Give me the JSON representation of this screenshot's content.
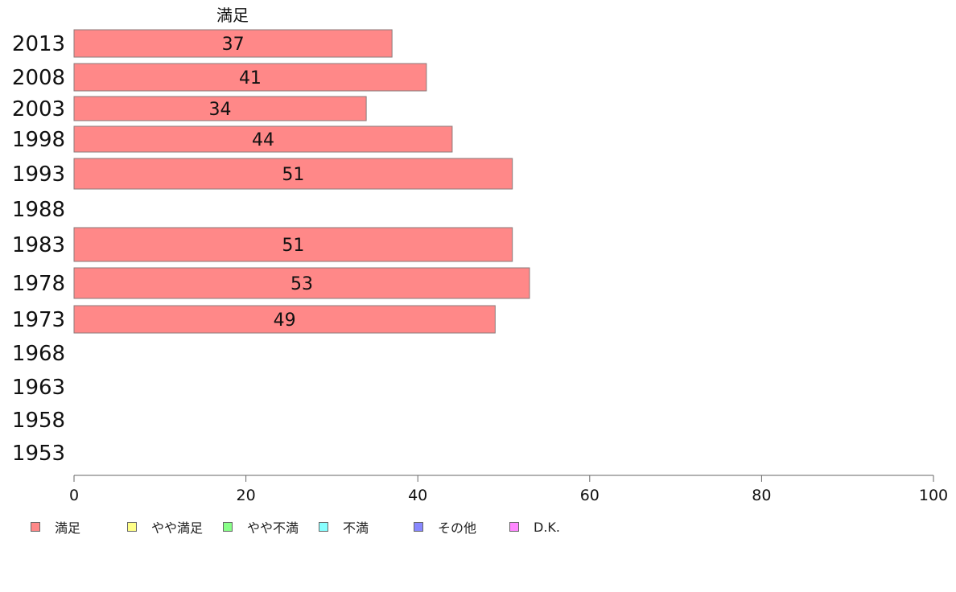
{
  "chart_data": {
    "type": "bar",
    "orientation": "horizontal",
    "title": "満足",
    "categories": [
      "2013",
      "2008",
      "2003",
      "1998",
      "1993",
      "1988",
      "1983",
      "1978",
      "1973",
      "1968",
      "1963",
      "1958",
      "1953"
    ],
    "series": [
      {
        "name": "満足",
        "color": "#ff8888",
        "values": [
          37,
          41,
          34,
          44,
          51,
          null,
          51,
          53,
          49,
          null,
          null,
          null,
          null
        ]
      }
    ],
    "data_labels": [
      "37",
      "41",
      "34",
      "44",
      "51",
      "",
      "51",
      "53",
      "49",
      "",
      "",
      "",
      ""
    ],
    "xlim": [
      0,
      100
    ],
    "x_ticks": [
      "0",
      "20",
      "40",
      "60",
      "80",
      "100"
    ],
    "grid": false,
    "legend": {
      "placement": "bottom",
      "items": [
        {
          "label": "満足",
          "color": "#ff8888"
        },
        {
          "label": "やや満足",
          "color": "#ffff88"
        },
        {
          "label": "やや不満",
          "color": "#88ff88"
        },
        {
          "label": "不満",
          "color": "#88ffff"
        },
        {
          "label": "その他",
          "color": "#8888ff"
        },
        {
          "label": "D.K.",
          "color": "#ff88ff"
        }
      ]
    }
  }
}
